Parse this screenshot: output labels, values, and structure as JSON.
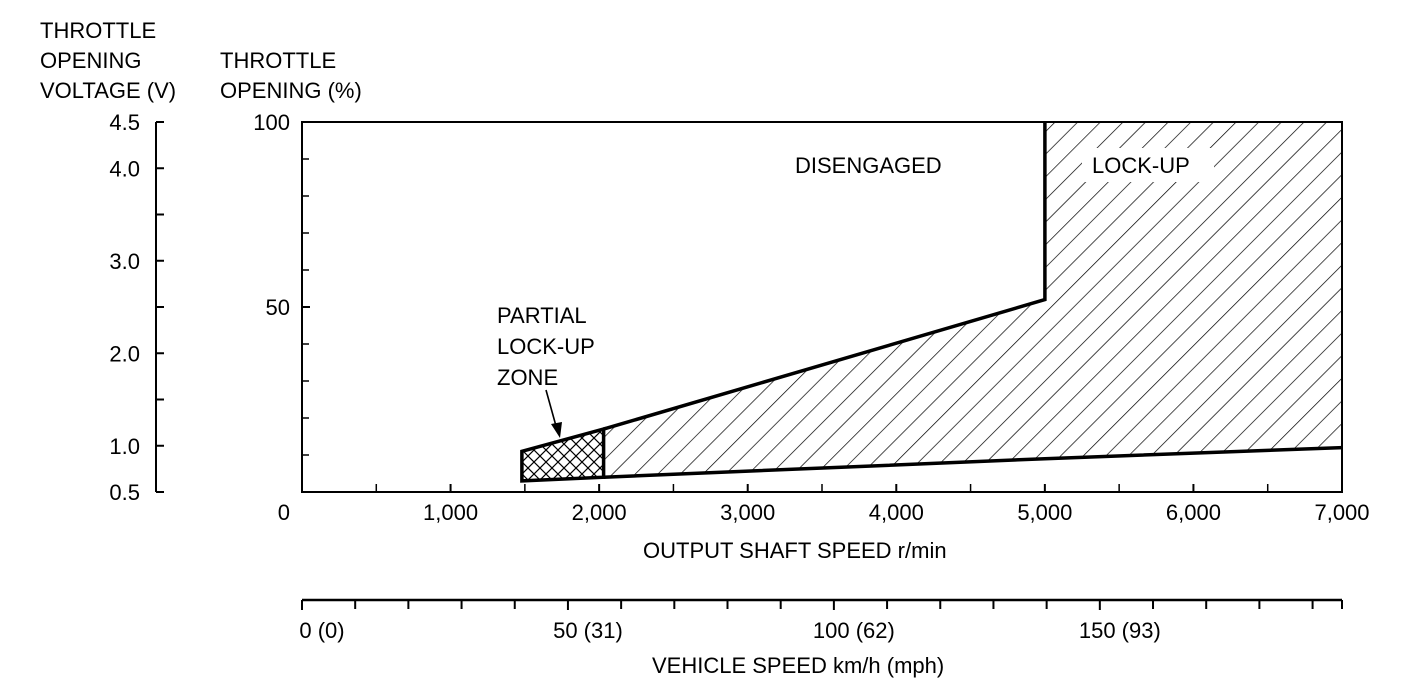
{
  "chart_data": {
    "type": "area",
    "title": "",
    "left_axis": {
      "title_lines": [
        "THROTTLE",
        "OPENING",
        "VOLTAGE (V)"
      ],
      "ticks": [
        {
          "v": 0.5,
          "label": "0.5"
        },
        {
          "v": 1.0,
          "label": "1.0"
        },
        {
          "v": 2.0,
          "label": "2.0"
        },
        {
          "v": 3.0,
          "label": "3.0"
        },
        {
          "v": 4.0,
          "label": "4.0"
        },
        {
          "v": 4.5,
          "label": "4.5"
        }
      ],
      "minor_ticks": [
        1.5,
        2.5,
        3.5
      ],
      "range": [
        0.5,
        4.5
      ]
    },
    "y_axis": {
      "title_lines": [
        "THROTTLE",
        "OPENING (%)"
      ],
      "ticks": [
        {
          "v": 50,
          "label": "50"
        },
        {
          "v": 100,
          "label": "100"
        }
      ],
      "minor_ticks": [
        10,
        20,
        30,
        40,
        60,
        70,
        80,
        90
      ],
      "range": [
        0,
        100
      ]
    },
    "x_axis": {
      "label": "OUTPUT SHAFT SPEED r/min",
      "range": [
        0,
        7000
      ],
      "ticks": [
        {
          "v": 0,
          "label": "0"
        },
        {
          "v": 1000,
          "label": "1,000"
        },
        {
          "v": 2000,
          "label": "2,000"
        },
        {
          "v": 3000,
          "label": "3,000"
        },
        {
          "v": 4000,
          "label": "4,000"
        },
        {
          "v": 5000,
          "label": "5,000"
        },
        {
          "v": 6000,
          "label": "6,000"
        },
        {
          "v": 7000,
          "label": "7,000"
        }
      ],
      "minor_ticks": [
        500,
        1500,
        2500,
        3500,
        4500,
        5500,
        6500
      ]
    },
    "vehicle_axis": {
      "label": "VEHICLE SPEED km/h (mph)",
      "ticks": [
        {
          "v": 0,
          "label": "0 (0)"
        },
        {
          "v": 1790,
          "label": "50 (31)"
        },
        {
          "v": 3580,
          "label": "100 (62)"
        },
        {
          "v": 5370,
          "label": "150 (93)"
        }
      ],
      "minor_ticks": [
        358,
        716,
        1074,
        1432,
        2148,
        2506,
        2864,
        3222,
        3938,
        4296,
        4654,
        5012,
        5728,
        6086,
        6444,
        6802,
        7000
      ]
    },
    "regions": {
      "disengaged_label": "DISENGAGED",
      "lockup_label": "LOCK-UP",
      "partial_label_lines": [
        "PARTIAL",
        "LOCK-UP",
        "ZONE"
      ],
      "lockup_upper_boundary": [
        {
          "x": 2030,
          "y": 17
        },
        {
          "x": 5000,
          "y": 52
        },
        {
          "x": 5000,
          "y": 100
        }
      ],
      "lockup_lower_boundary": [
        {
          "x": 2030,
          "y": 4
        },
        {
          "x": 5000,
          "y": 9
        },
        {
          "x": 7000,
          "y": 12
        }
      ],
      "partial_zone": [
        {
          "x": 1480,
          "y": 3
        },
        {
          "x": 1480,
          "y": 11
        },
        {
          "x": 2030,
          "y": 17
        },
        {
          "x": 2030,
          "y": 4
        }
      ]
    },
    "grid": false
  }
}
